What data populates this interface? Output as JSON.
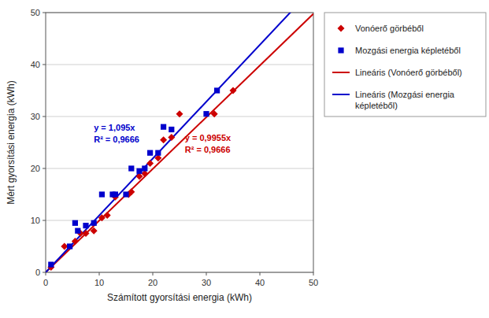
{
  "chart_data": {
    "type": "scatter",
    "xlabel": "Számított gyorsítási energia (kWh)",
    "ylabel": "Mért gyorsítási energia (kWh)",
    "xlim": [
      0,
      50
    ],
    "ylim": [
      0,
      50
    ],
    "xticks": [
      0,
      10,
      20,
      30,
      40,
      50
    ],
    "yticks": [
      0,
      10,
      20,
      30,
      40,
      50
    ],
    "grid": "y",
    "legend": "right",
    "series": [
      {
        "name": "Vonóerő görbéből",
        "type": "scatter",
        "marker": "diamond",
        "color": "#cc0000",
        "x": [
          1.0,
          3.5,
          5.5,
          6.5,
          7.5,
          9.0,
          10.5,
          11.5,
          13.0,
          15.5,
          16.0,
          17.5,
          18.5,
          19.5,
          21.0,
          22.0,
          23.5,
          25.0,
          31.5,
          35.0
        ],
        "values": [
          1.0,
          5.0,
          6.0,
          7.5,
          7.5,
          8.0,
          10.5,
          11.0,
          14.5,
          15.0,
          15.5,
          18.5,
          19.0,
          21.0,
          22.0,
          25.5,
          26.0,
          30.5,
          30.5,
          35.0
        ]
      },
      {
        "name": "Mozgási energia képletéből",
        "type": "scatter",
        "marker": "square",
        "color": "#0000cc",
        "x": [
          1.0,
          4.5,
          5.5,
          6.0,
          7.5,
          9.0,
          10.5,
          12.5,
          13.0,
          15.0,
          16.0,
          17.5,
          18.5,
          19.5,
          21.0,
          22.0,
          23.5,
          30.0,
          32.0
        ],
        "values": [
          1.5,
          5.0,
          9.5,
          8.0,
          9.0,
          9.5,
          15.0,
          15.0,
          15.0,
          15.0,
          20.0,
          19.5,
          20.0,
          23.0,
          23.0,
          28.0,
          27.5,
          30.5,
          35.0
        ]
      },
      {
        "name": "Lineáris (Vonóerő görbéből)",
        "type": "line",
        "color": "#cc0000",
        "slope": 0.9955
      },
      {
        "name": "Lineáris (Mozgási energia\nképletéből)",
        "type": "line",
        "color": "#0000cc",
        "slope": 1.095
      }
    ],
    "annotations": [
      {
        "text": "y = 1,095x\nR² = 0,9666",
        "x": 9.0,
        "y": 29.0,
        "color": "#0000cc"
      },
      {
        "text": "y = 0,9955x\nR² = 0,9666",
        "x": 26.0,
        "y": 27.0,
        "color": "#cc0000"
      }
    ]
  }
}
